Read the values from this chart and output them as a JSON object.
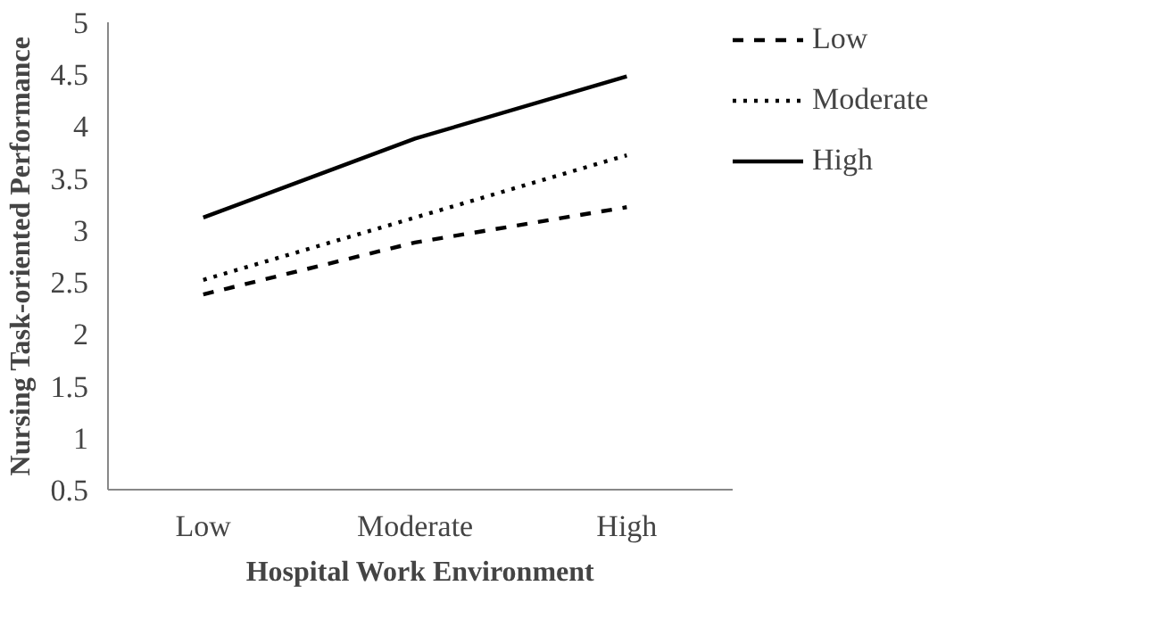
{
  "chart_data": {
    "type": "line",
    "xlabel": "Hospital Work Environment",
    "ylabel": "Nursing Task-oriented Performance",
    "categories": [
      "Low",
      "Moderate",
      "High"
    ],
    "ylim": [
      0.5,
      5
    ],
    "yticks": [
      0.5,
      1,
      1.5,
      2,
      2.5,
      3,
      3.5,
      4,
      4.5,
      5
    ],
    "grid": false,
    "legend": "right",
    "marker": "none",
    "series": [
      {
        "name": "Low",
        "color": "#000000",
        "line_style": "dashed",
        "values": [
          2.38,
          2.88,
          3.22
        ]
      },
      {
        "name": "Moderate",
        "color": "#000000",
        "line_style": "dotted",
        "values": [
          2.52,
          3.12,
          3.72
        ]
      },
      {
        "name": "High",
        "color": "#000000",
        "line_style": "solid",
        "values": [
          3.12,
          3.88,
          4.48
        ]
      }
    ]
  }
}
